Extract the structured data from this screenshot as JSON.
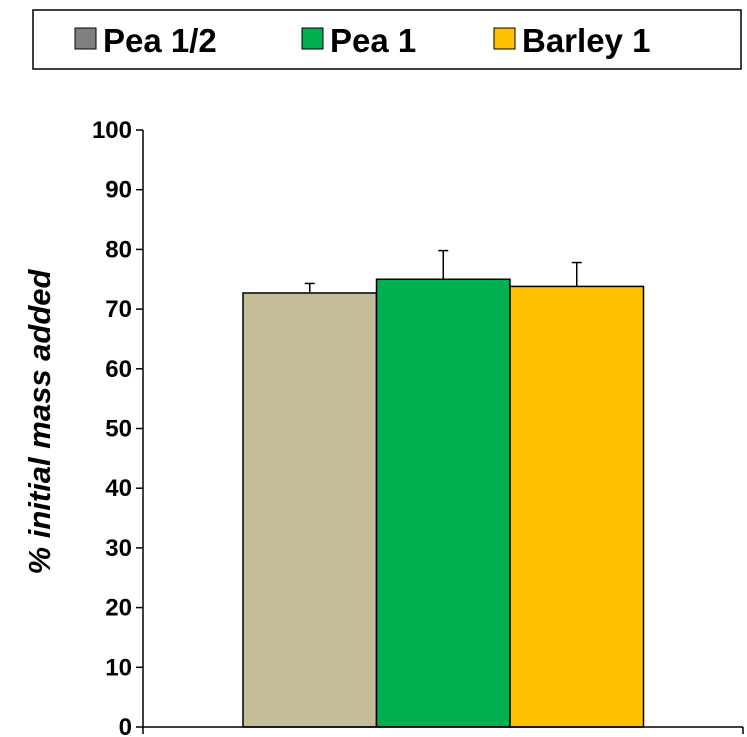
{
  "chart_data": {
    "type": "bar",
    "title": "",
    "xlabel": "",
    "ylabel": "% initial mass added",
    "ylim": [
      0,
      100
    ],
    "yticks": [
      0,
      10,
      20,
      30,
      40,
      50,
      60,
      70,
      80,
      90,
      100
    ],
    "grid": false,
    "legend_position": "top",
    "series": [
      {
        "name": "Pea 1/2",
        "value": 72.7,
        "error": 1.6,
        "bar_color": "#C4BD97",
        "legend_color": "#808080"
      },
      {
        "name": "Pea 1",
        "value": 75.0,
        "error": 4.8,
        "bar_color": "#00B050",
        "legend_color": "#00B050"
      },
      {
        "name": "Barley 1",
        "value": 73.8,
        "error": 4.0,
        "bar_color": "#FFC000",
        "legend_color": "#FFC000"
      }
    ]
  }
}
